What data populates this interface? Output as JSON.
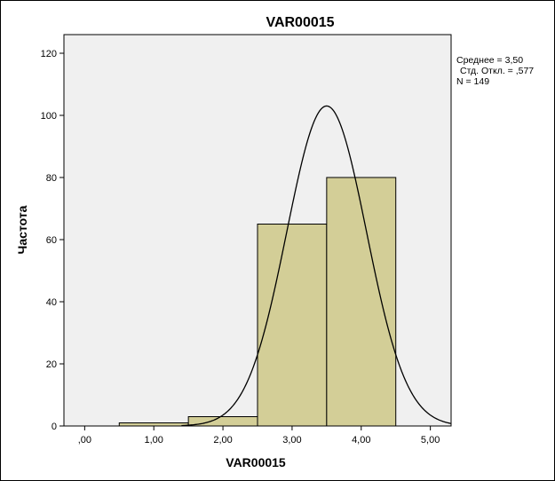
{
  "chart_data": {
    "type": "bar",
    "title": "VAR00015",
    "xlabel": "VAR00015",
    "ylabel": "Частота",
    "bins": [
      {
        "start": 0.5,
        "end": 1.5,
        "count": 1
      },
      {
        "start": 1.5,
        "end": 2.5,
        "count": 3
      },
      {
        "start": 2.5,
        "end": 3.5,
        "count": 65
      },
      {
        "start": 3.5,
        "end": 4.5,
        "count": 80
      }
    ],
    "xlim": [
      -0.3,
      5.3
    ],
    "ylim": [
      0,
      126
    ],
    "x_ticks": [
      {
        "value": 0,
        "label": ",00"
      },
      {
        "value": 1,
        "label": "1,00"
      },
      {
        "value": 2,
        "label": "2,00"
      },
      {
        "value": 3,
        "label": "3,00"
      },
      {
        "value": 4,
        "label": "4,00"
      },
      {
        "value": 5,
        "label": "5,00"
      }
    ],
    "y_ticks": [
      {
        "value": 0,
        "label": "0"
      },
      {
        "value": 20,
        "label": "20"
      },
      {
        "value": 40,
        "label": "40"
      },
      {
        "value": 60,
        "label": "60"
      },
      {
        "value": 80,
        "label": "80"
      },
      {
        "value": 100,
        "label": "100"
      },
      {
        "value": 120,
        "label": "120"
      }
    ],
    "normal_curve": {
      "mean": 3.5,
      "std": 0.577,
      "n": 149,
      "bin_width": 1
    },
    "stats": {
      "mean": "Среднее = 3,50",
      "std": "Стд. Откл. = ,577",
      "n": "N = 149"
    },
    "colors": {
      "plot_background": "#f0f0f0",
      "bar_fill": "#d3ce97",
      "bar_stroke": "#000000",
      "curve": "#000000"
    },
    "grid": false,
    "legend_position": "right"
  }
}
